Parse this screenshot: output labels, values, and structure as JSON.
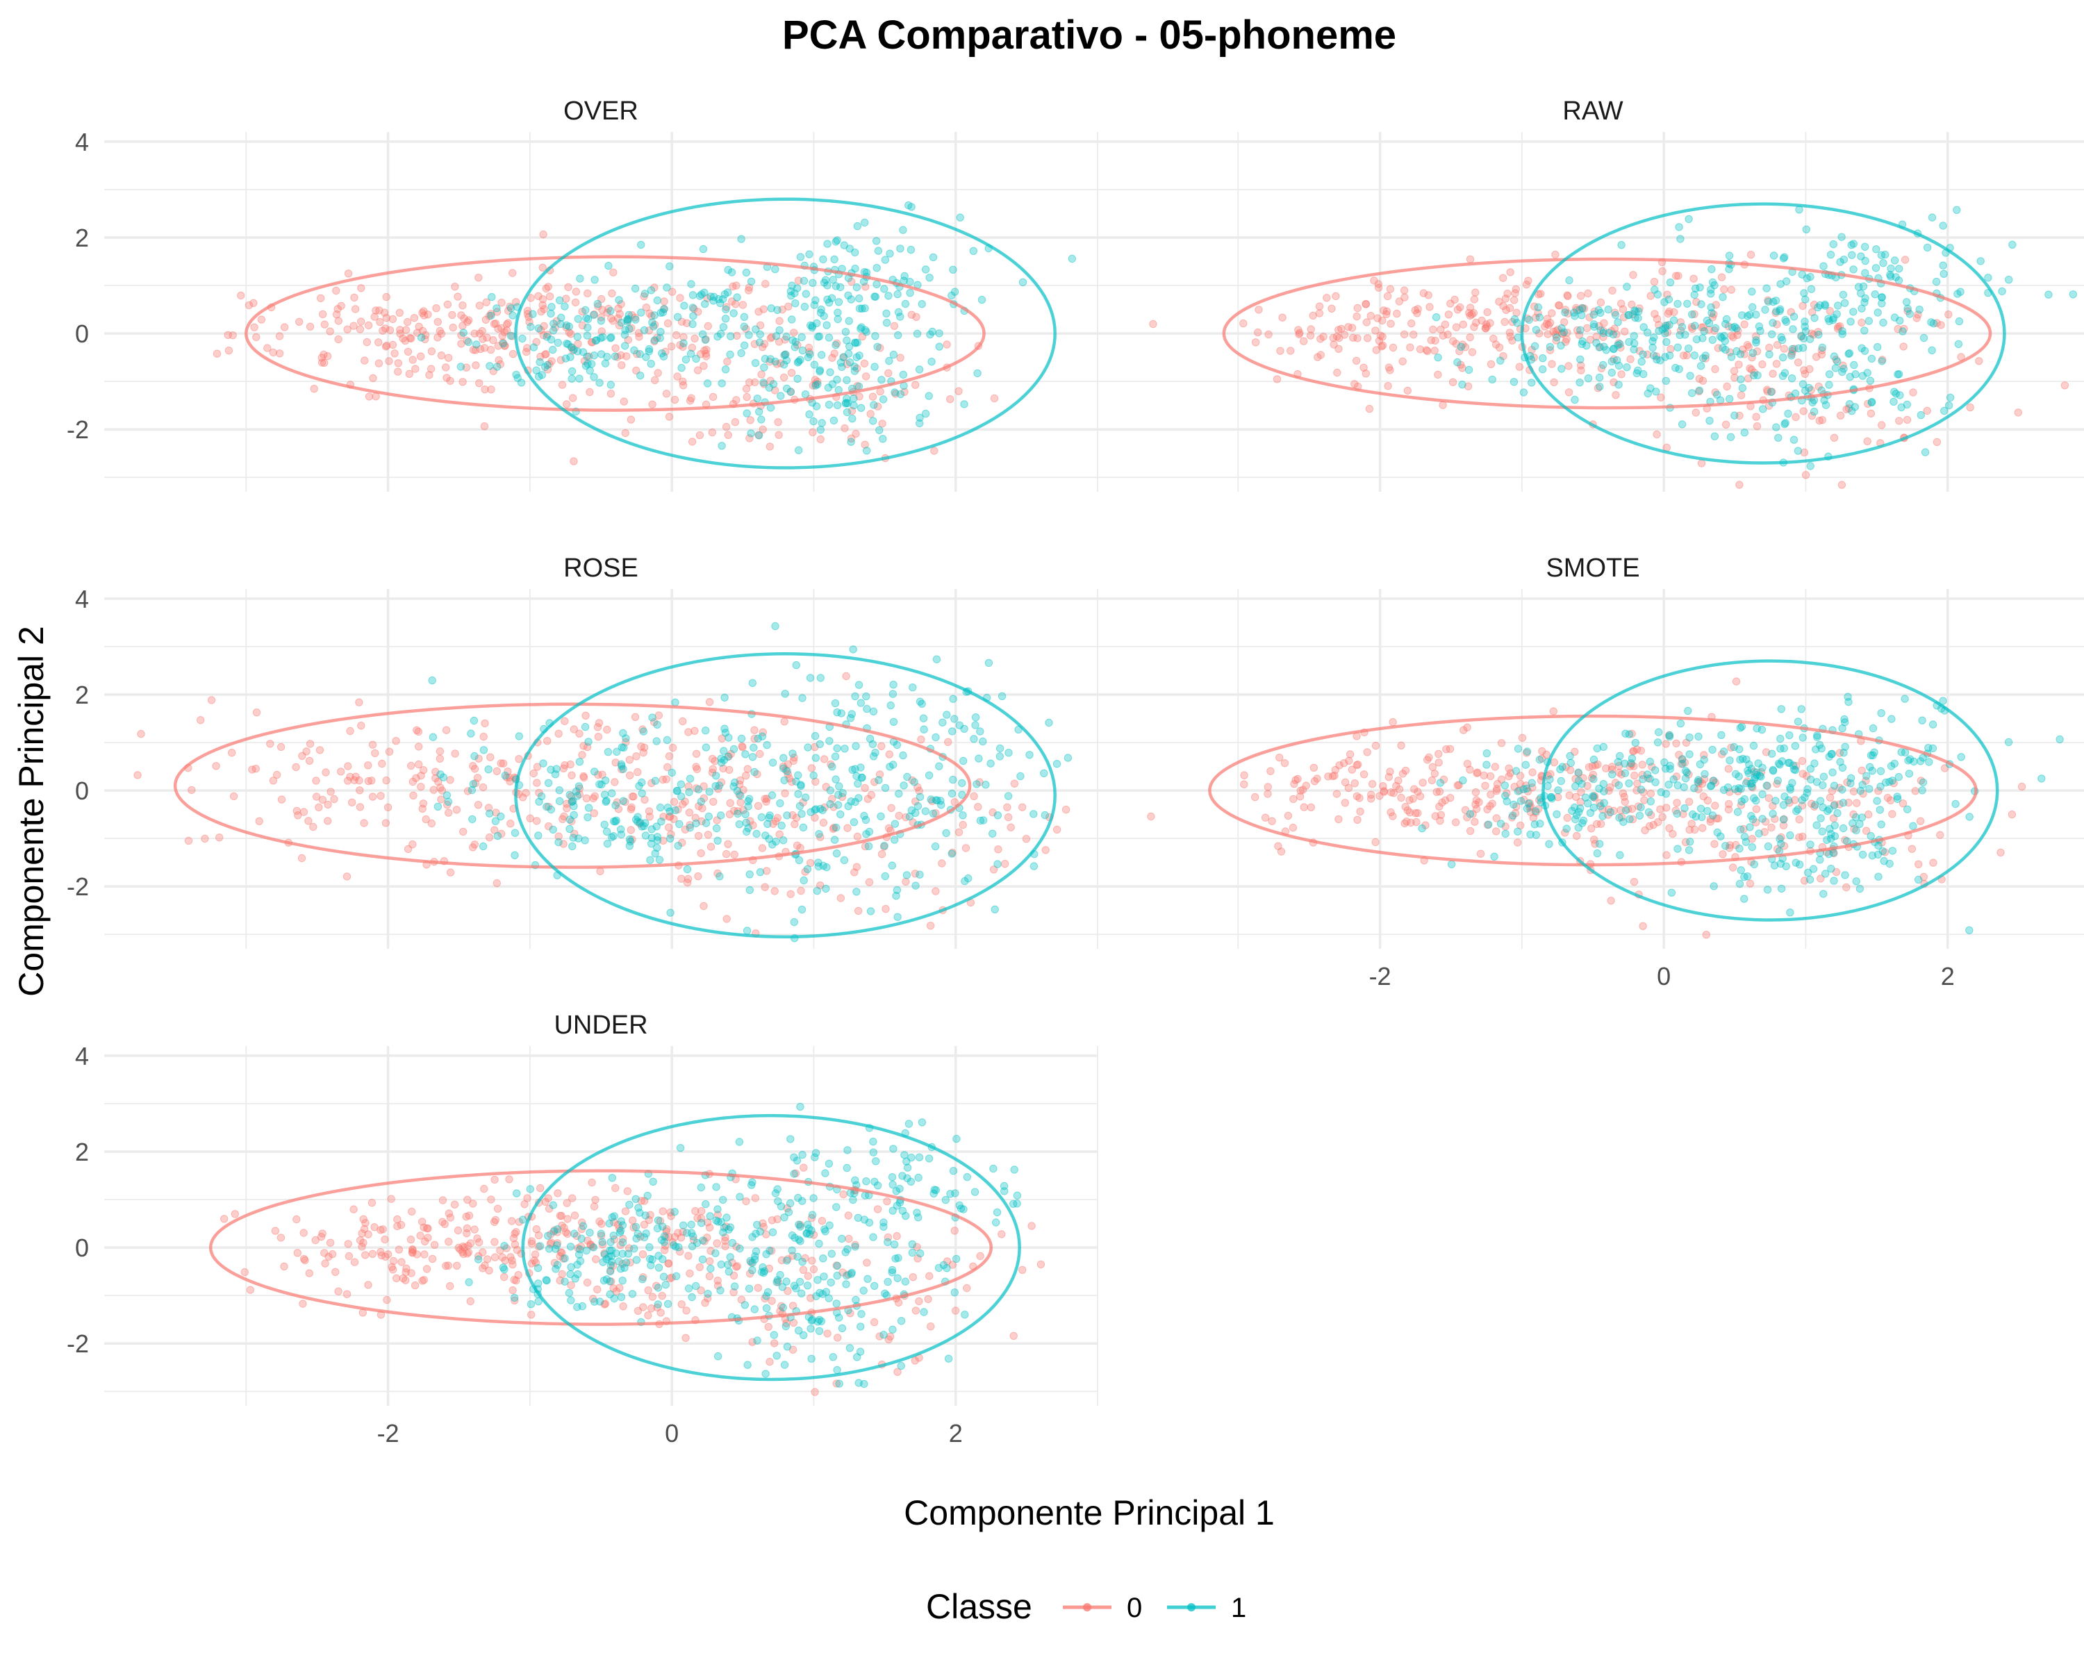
{
  "chart_data": {
    "type": "scatter",
    "title": "PCA Comparativo - 05-phoneme",
    "xlabel": "Componente Principal 1",
    "ylabel": "Componente Principal 2",
    "xlim": [
      -4.0,
      3.0
    ],
    "ylim": [
      -3.3,
      4.2
    ],
    "x_ticks": [
      -2,
      0,
      2
    ],
    "y_ticks": [
      -2,
      0,
      2,
      4
    ],
    "grid": true,
    "legend": {
      "title": "Classe",
      "position": "bottom",
      "entries": [
        {
          "label": "0",
          "color": "#F8766D"
        },
        {
          "label": "1",
          "color": "#00BFC4"
        }
      ]
    },
    "point_counts_estimated": {
      "class_0": 420,
      "class_1": 420
    },
    "panels": [
      {
        "name": "OVER",
        "ellipses": [
          {
            "class": "0",
            "center": [
              -0.4,
              0.0
            ],
            "rx": 2.6,
            "ry": 1.6
          },
          {
            "class": "1",
            "center": [
              0.8,
              0.0
            ],
            "rx": 1.9,
            "ry": 2.8
          }
        ],
        "clusters": {
          "class_0": [
            [
              -1.9,
              0.0,
              0.6,
              0.5
            ],
            [
              -0.6,
              0.1,
              0.7,
              0.6
            ],
            [
              0.7,
              -1.0,
              0.7,
              0.9
            ]
          ],
          "class_1": [
            [
              0.3,
              0.5,
              0.6,
              0.6
            ],
            [
              1.1,
              -1.1,
              0.45,
              0.6
            ],
            [
              1.4,
              1.0,
              0.45,
              0.7
            ],
            [
              -0.6,
              -0.2,
              0.4,
              0.5
            ]
          ]
        }
      },
      {
        "name": "RAW",
        "ellipses": [
          {
            "class": "0",
            "center": [
              -0.4,
              0.0
            ],
            "rx": 2.7,
            "ry": 1.55
          },
          {
            "class": "1",
            "center": [
              0.7,
              0.0
            ],
            "rx": 1.7,
            "ry": 2.7
          }
        ],
        "clusters": {
          "class_0": [
            [
              -1.8,
              0.0,
              0.6,
              0.5
            ],
            [
              -0.6,
              0.2,
              0.7,
              0.6
            ],
            [
              0.9,
              -0.8,
              0.7,
              0.9
            ]
          ],
          "class_1": [
            [
              0.4,
              0.4,
              0.6,
              0.6
            ],
            [
              1.0,
              -1.2,
              0.45,
              0.7
            ],
            [
              1.4,
              1.1,
              0.5,
              0.7
            ],
            [
              -0.4,
              -0.3,
              0.4,
              0.5
            ]
          ]
        }
      },
      {
        "name": "ROSE",
        "ellipses": [
          {
            "class": "0",
            "center": [
              -0.7,
              0.1
            ],
            "rx": 2.8,
            "ry": 1.7
          },
          {
            "class": "1",
            "center": [
              0.8,
              -0.1
            ],
            "rx": 1.9,
            "ry": 2.95
          }
        ],
        "clusters": {
          "class_0": [
            [
              -1.8,
              0.1,
              0.8,
              0.7
            ],
            [
              -0.2,
              0.2,
              0.9,
              0.8
            ],
            [
              1.0,
              -0.6,
              0.8,
              1.0
            ]
          ],
          "class_1": [
            [
              0.4,
              0.2,
              0.9,
              0.9
            ],
            [
              1.1,
              -1.0,
              0.7,
              0.9
            ],
            [
              1.6,
              1.0,
              0.6,
              0.9
            ],
            [
              -0.5,
              -0.2,
              0.6,
              0.7
            ]
          ]
        }
      },
      {
        "name": "SMOTE",
        "ellipses": [
          {
            "class": "0",
            "center": [
              -0.5,
              0.0
            ],
            "rx": 2.7,
            "ry": 1.55
          },
          {
            "class": "1",
            "center": [
              0.75,
              0.0
            ],
            "rx": 1.6,
            "ry": 2.7
          }
        ],
        "clusters": {
          "class_0": [
            [
              -1.9,
              -0.1,
              0.6,
              0.5
            ],
            [
              -0.5,
              0.1,
              0.7,
              0.6
            ],
            [
              0.8,
              -0.7,
              0.7,
              0.9
            ]
          ],
          "class_1": [
            [
              0.4,
              0.4,
              0.55,
              0.55
            ],
            [
              1.0,
              -1.1,
              0.45,
              0.6
            ],
            [
              1.3,
              0.7,
              0.5,
              0.6
            ],
            [
              -0.6,
              -0.2,
              0.4,
              0.5
            ]
          ]
        }
      },
      {
        "name": "UNDER",
        "ellipses": [
          {
            "class": "0",
            "center": [
              -0.5,
              0.0
            ],
            "rx": 2.75,
            "ry": 1.6
          },
          {
            "class": "1",
            "center": [
              0.7,
              0.0
            ],
            "rx": 1.75,
            "ry": 2.75
          }
        ],
        "clusters": {
          "class_0": [
            [
              -1.8,
              0.0,
              0.6,
              0.5
            ],
            [
              -0.5,
              0.2,
              0.7,
              0.6
            ],
            [
              0.8,
              -0.8,
              0.7,
              0.9
            ]
          ],
          "class_1": [
            [
              0.4,
              0.4,
              0.6,
              0.6
            ],
            [
              1.0,
              -1.2,
              0.45,
              0.7
            ],
            [
              1.4,
              1.1,
              0.5,
              0.7
            ],
            [
              -0.5,
              -0.3,
              0.4,
              0.5
            ]
          ]
        }
      }
    ]
  }
}
